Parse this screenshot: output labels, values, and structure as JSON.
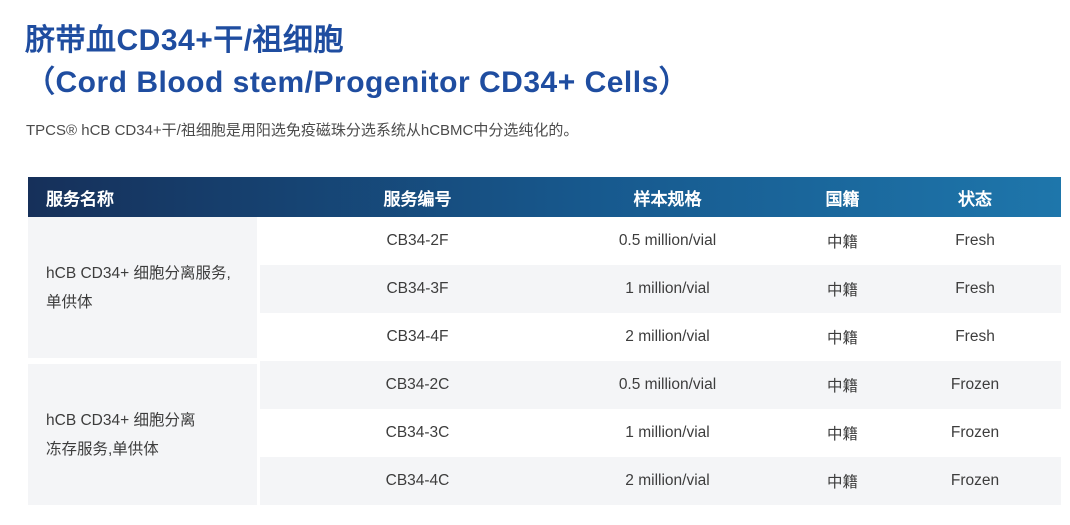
{
  "page": {
    "title_zh": "脐带血CD34+干/祖细胞",
    "title_en": "（Cord Blood stem/Progenitor CD34+ Cells）",
    "subtitle": "TPCS® hCB CD34+干/祖细胞是用阳选免疫磁珠分选系统从hCBMC中分选纯化的。"
  },
  "colors": {
    "title_blue": "#1f4da0",
    "header_gradient_left": "#16305a",
    "header_gradient_right": "#1e76ab",
    "row_stripe": "#f4f5f7",
    "body_text": "#3d3d3d"
  },
  "table": {
    "headers": [
      "服务名称",
      "服务编号",
      "样本规格",
      "国籍",
      "状态"
    ],
    "groups": [
      {
        "service_name_lines": [
          "hCB CD34+ 细胞分离服务,",
          "单供体"
        ],
        "rows": [
          {
            "code": "CB34-2F",
            "spec": "0.5 million/vial",
            "nationality": "中籍",
            "status": "Fresh"
          },
          {
            "code": "CB34-3F",
            "spec": "1 million/vial",
            "nationality": "中籍",
            "status": "Fresh"
          },
          {
            "code": "CB34-4F",
            "spec": "2 million/vial",
            "nationality": "中籍",
            "status": "Fresh"
          }
        ]
      },
      {
        "service_name_lines": [
          "hCB CD34+ 细胞分离",
          "冻存服务,单供体"
        ],
        "rows": [
          {
            "code": "CB34-2C",
            "spec": "0.5 million/vial",
            "nationality": "中籍",
            "status": "Frozen"
          },
          {
            "code": "CB34-3C",
            "spec": "1 million/vial",
            "nationality": "中籍",
            "status": "Frozen"
          },
          {
            "code": "CB34-4C",
            "spec": "2 million/vial",
            "nationality": "中籍",
            "status": "Frozen"
          }
        ]
      }
    ]
  }
}
